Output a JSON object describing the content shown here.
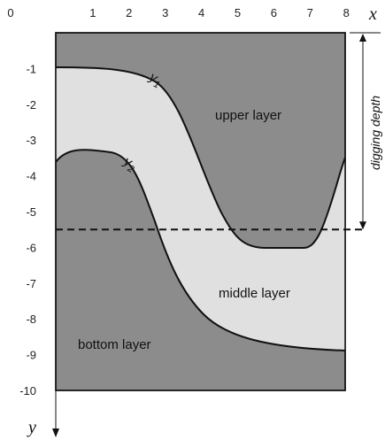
{
  "x_axis": {
    "name": "x",
    "ticks": [
      "0",
      "1",
      "2",
      "3",
      "4",
      "5",
      "6",
      "7",
      "8"
    ]
  },
  "y_axis": {
    "name": "y",
    "ticks": [
      "-1",
      "-2",
      "-3",
      "-4",
      "-5",
      "-6",
      "-7",
      "-8",
      "-9",
      "-10"
    ]
  },
  "curves": {
    "y1": {
      "letter": "y",
      "subscript": "1"
    },
    "y2": {
      "letter": "y",
      "subscript": "2"
    }
  },
  "layers": {
    "upper": "upper layer",
    "middle": "middle layer",
    "bottom": "bottom layer"
  },
  "digging_depth": {
    "label": "digging depth",
    "value": -5.5
  },
  "colors": {
    "dark_layer": "#8c8c8c",
    "light_layer": "#e0e0e0",
    "line": "#111111"
  }
}
